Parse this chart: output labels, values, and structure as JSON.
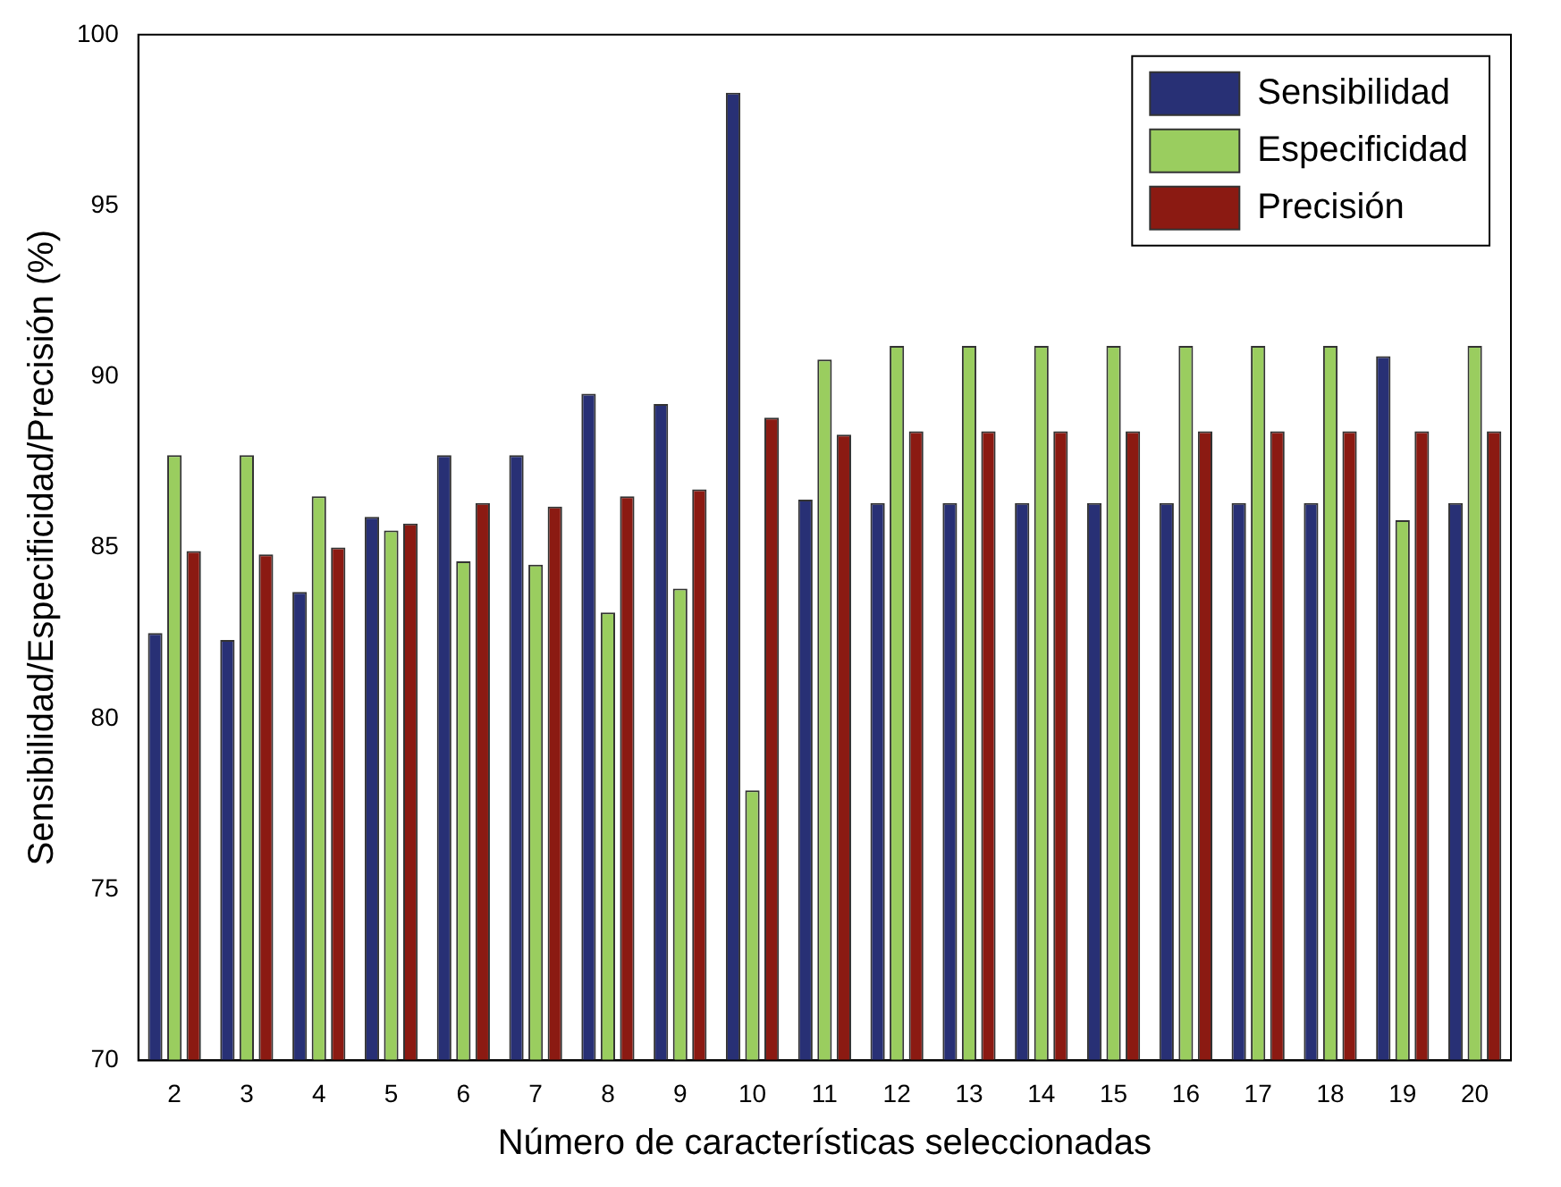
{
  "chart_data": {
    "type": "bar",
    "xlabel": "Número de características seleccionadas",
    "ylabel": "Sensibilidad/Especificidad/Precisión (%)",
    "categories": [
      "2",
      "3",
      "4",
      "5",
      "6",
      "7",
      "8",
      "9",
      "10",
      "11",
      "12",
      "13",
      "14",
      "15",
      "16",
      "17",
      "18",
      "19",
      "20"
    ],
    "series": [
      {
        "name": "Sensibilidad",
        "color": "#283075",
        "values": [
          82.5,
          82.3,
          83.7,
          85.9,
          87.7,
          87.7,
          89.5,
          89.2,
          98.3,
          86.4,
          86.3,
          86.3,
          86.3,
          86.3,
          86.3,
          86.3,
          86.3,
          90.6,
          86.3
        ]
      },
      {
        "name": "Especificidad",
        "color": "#9acd5f",
        "values": [
          87.7,
          87.7,
          86.5,
          85.5,
          84.6,
          84.5,
          83.1,
          83.8,
          77.9,
          90.5,
          90.9,
          90.9,
          90.9,
          90.9,
          90.9,
          90.9,
          90.9,
          85.8,
          90.9
        ]
      },
      {
        "name": "Precisión",
        "color": "#8b1a12",
        "values": [
          84.9,
          84.8,
          85.0,
          85.7,
          86.3,
          86.2,
          86.5,
          86.7,
          88.8,
          88.3,
          88.4,
          88.4,
          88.4,
          88.4,
          88.4,
          88.4,
          88.4,
          88.4,
          88.4
        ]
      }
    ],
    "ylim": [
      70,
      100
    ],
    "yticks": [
      70,
      75,
      80,
      85,
      90,
      95,
      100
    ],
    "grid": false,
    "legend": "top right"
  }
}
